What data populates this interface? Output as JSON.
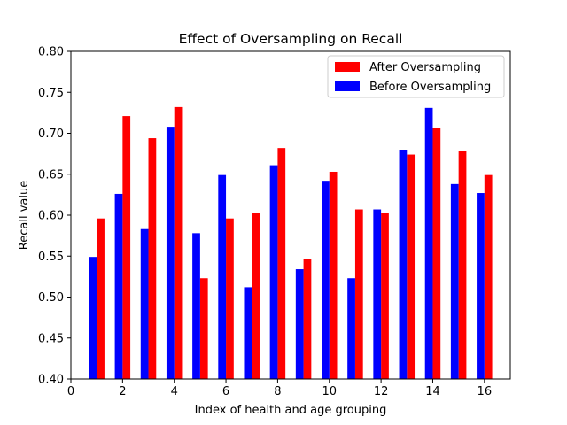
{
  "chart_data": {
    "type": "bar",
    "title": "Effect of Oversampling on Recall",
    "xlabel": "Index of health and age grouping",
    "ylabel": "Recall value",
    "xlim": [
      0,
      17
    ],
    "ylim": [
      0.4,
      0.8
    ],
    "xticks": [
      0,
      2,
      4,
      6,
      8,
      10,
      12,
      14,
      16
    ],
    "yticks": [
      0.4,
      0.45,
      0.5,
      0.55,
      0.6,
      0.65,
      0.7,
      0.75,
      0.8
    ],
    "grid": false,
    "legend_position": "top-right",
    "x": [
      1,
      2,
      3,
      4,
      5,
      6,
      7,
      8,
      9,
      10,
      11,
      12,
      13,
      14,
      15,
      16
    ],
    "series": [
      {
        "name": "After Oversampling",
        "color": "#ff0000",
        "values": [
          0.596,
          0.721,
          0.694,
          0.732,
          0.523,
          0.596,
          0.603,
          0.682,
          0.546,
          0.653,
          0.607,
          0.603,
          0.674,
          0.707,
          0.678,
          0.649
        ]
      },
      {
        "name": "Before Oversampling",
        "color": "#0000ff",
        "values": [
          0.549,
          0.626,
          0.583,
          0.708,
          0.578,
          0.649,
          0.512,
          0.661,
          0.534,
          0.642,
          0.523,
          0.607,
          0.68,
          0.731,
          0.638,
          0.627
        ]
      }
    ]
  }
}
